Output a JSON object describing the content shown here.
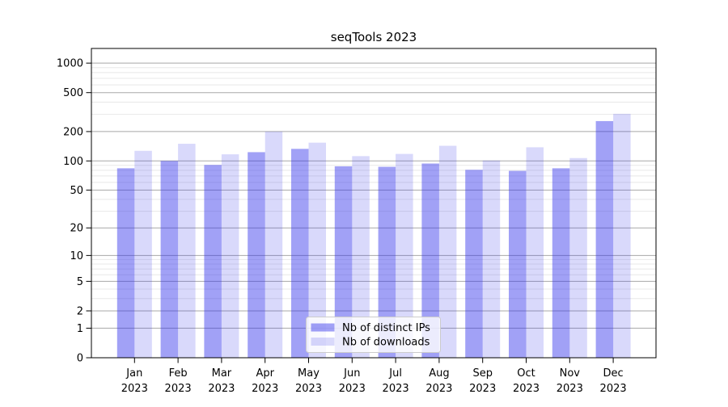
{
  "chart_data": {
    "type": "bar",
    "title": "seqTools 2023",
    "categories": [
      "Jan",
      "Feb",
      "Mar",
      "Apr",
      "May",
      "Jun",
      "Jul",
      "Aug",
      "Sep",
      "Oct",
      "Nov",
      "Dec"
    ],
    "category_year": "2023",
    "series": [
      {
        "name": "Nb of distinct IPs",
        "color": "#2f2fea",
        "alpha": 0.45,
        "values": [
          84,
          100,
          91,
          123,
          133,
          88,
          87,
          94,
          81,
          79,
          84,
          256
        ]
      },
      {
        "name": "Nb of downloads",
        "color": "#2f2fea",
        "alpha": 0.18,
        "values": [
          127,
          150,
          117,
          200,
          154,
          112,
          118,
          143,
          101,
          138,
          107,
          304
        ]
      }
    ],
    "y_ticks": [
      0,
      1,
      2,
      5,
      10,
      20,
      50,
      100,
      200,
      500,
      1000
    ],
    "y_minor_ticks": [
      3,
      4,
      6,
      7,
      8,
      9,
      30,
      40,
      60,
      70,
      80,
      90,
      300,
      400,
      600,
      700,
      800,
      900
    ],
    "scale": "log10(value+1)",
    "ylim": [
      0,
      1400
    ],
    "xlabel": "",
    "ylabel": "",
    "grid": true,
    "legend_position": "lower center inside",
    "colors": {
      "grid_major": "#a8a8a8",
      "grid_minor": "#e8e8e8",
      "axis": "#000000",
      "text": "#000000",
      "bar_ips_rendered": "#a1a1f5",
      "bar_downloads_rendered": "#dadafb"
    }
  }
}
